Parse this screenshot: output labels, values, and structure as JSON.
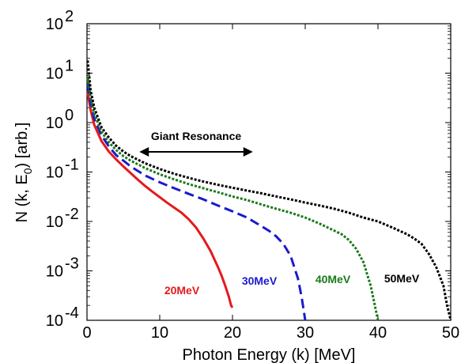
{
  "chart_data": {
    "type": "line",
    "title": "",
    "xlabel": "Photon Energy (k) [MeV]",
    "ylabel_parts": {
      "main": "N (k, E",
      "sub": "0",
      "tail": ") [arb.]"
    },
    "xlim": [
      0,
      50
    ],
    "ylim": [
      0.0001,
      100
    ],
    "yscale": "log",
    "grid": false,
    "x_ticks": [
      "0",
      "10",
      "20",
      "30",
      "40",
      "50"
    ],
    "y_ticks": [
      {
        "base": "10",
        "exp": "-4"
      },
      {
        "base": "10",
        "exp": "-3"
      },
      {
        "base": "10",
        "exp": "-2"
      },
      {
        "base": "10",
        "exp": "-1"
      },
      {
        "base": "10",
        "exp": "0"
      },
      {
        "base": "10",
        "exp": "1"
      },
      {
        "base": "10",
        "exp": "2"
      }
    ],
    "annotation": {
      "text": "Giant Resonance",
      "x_start": 10,
      "x_end": 20
    },
    "series": [
      {
        "name": "20MeV",
        "color": "#e31a1c",
        "style": "solid",
        "x": [
          0.1,
          0.5,
          1,
          2,
          3,
          4,
          5,
          6,
          7,
          8,
          9,
          10,
          11,
          12,
          13,
          14,
          15,
          16,
          17,
          18,
          18.5,
          19,
          19.5,
          19.8,
          20
        ],
        "y": [
          4,
          1.8,
          0.9,
          0.42,
          0.26,
          0.18,
          0.13,
          0.095,
          0.07,
          0.052,
          0.04,
          0.031,
          0.024,
          0.019,
          0.015,
          0.011,
          0.0075,
          0.0045,
          0.0025,
          0.0012,
          0.0008,
          0.0005,
          0.0003,
          0.0002,
          0.00018
        ]
      },
      {
        "name": "30MeV",
        "color": "#1a1acc",
        "style": "dashed",
        "x": [
          0.1,
          0.5,
          1,
          2,
          3,
          4,
          5,
          6,
          8,
          10,
          12,
          14,
          16,
          18,
          20,
          22,
          24,
          25,
          26,
          27,
          28,
          29,
          29.5,
          30
        ],
        "y": [
          6,
          2.5,
          1.2,
          0.55,
          0.33,
          0.22,
          0.17,
          0.13,
          0.085,
          0.062,
          0.047,
          0.036,
          0.028,
          0.021,
          0.016,
          0.012,
          0.008,
          0.0065,
          0.005,
          0.0035,
          0.002,
          0.0007,
          0.0003,
          0.0001
        ]
      },
      {
        "name": "40MeV",
        "color": "#1a7a1a",
        "style": "dotted",
        "x": [
          0.1,
          0.5,
          1,
          2,
          3,
          4,
          5,
          6,
          8,
          10,
          12,
          14,
          16,
          18,
          20,
          22,
          24,
          26,
          28,
          30,
          32,
          34,
          35,
          36,
          37,
          38,
          39,
          40
        ],
        "y": [
          8,
          3.2,
          1.5,
          0.65,
          0.4,
          0.28,
          0.21,
          0.17,
          0.12,
          0.09,
          0.071,
          0.057,
          0.047,
          0.039,
          0.032,
          0.027,
          0.022,
          0.018,
          0.015,
          0.012,
          0.009,
          0.0065,
          0.0055,
          0.0042,
          0.0028,
          0.0015,
          0.0005,
          0.0001
        ]
      },
      {
        "name": "50MeV",
        "color": "#000000",
        "style": "dotted",
        "x": [
          0.1,
          0.5,
          1,
          2,
          3,
          4,
          5,
          6,
          8,
          10,
          12,
          14,
          16,
          18,
          20,
          22,
          24,
          26,
          28,
          30,
          32,
          34,
          36,
          38,
          40,
          42,
          44,
          45,
          46,
          47,
          48,
          49,
          49.5,
          50
        ],
        "y": [
          18,
          4.5,
          2,
          0.8,
          0.5,
          0.34,
          0.26,
          0.21,
          0.15,
          0.115,
          0.092,
          0.076,
          0.064,
          0.055,
          0.048,
          0.042,
          0.037,
          0.032,
          0.028,
          0.024,
          0.021,
          0.018,
          0.015,
          0.012,
          0.01,
          0.0075,
          0.0055,
          0.0045,
          0.0035,
          0.0022,
          0.0012,
          0.0005,
          0.0002,
          0.0001
        ]
      }
    ],
    "series_labels": [
      {
        "text": "20MeV",
        "color": "#e31a1c"
      },
      {
        "text": "30MeV",
        "color": "#1a1acc"
      },
      {
        "text": "40MeV",
        "color": "#1a7a1a"
      },
      {
        "text": "50MeV",
        "color": "#000000"
      }
    ]
  }
}
